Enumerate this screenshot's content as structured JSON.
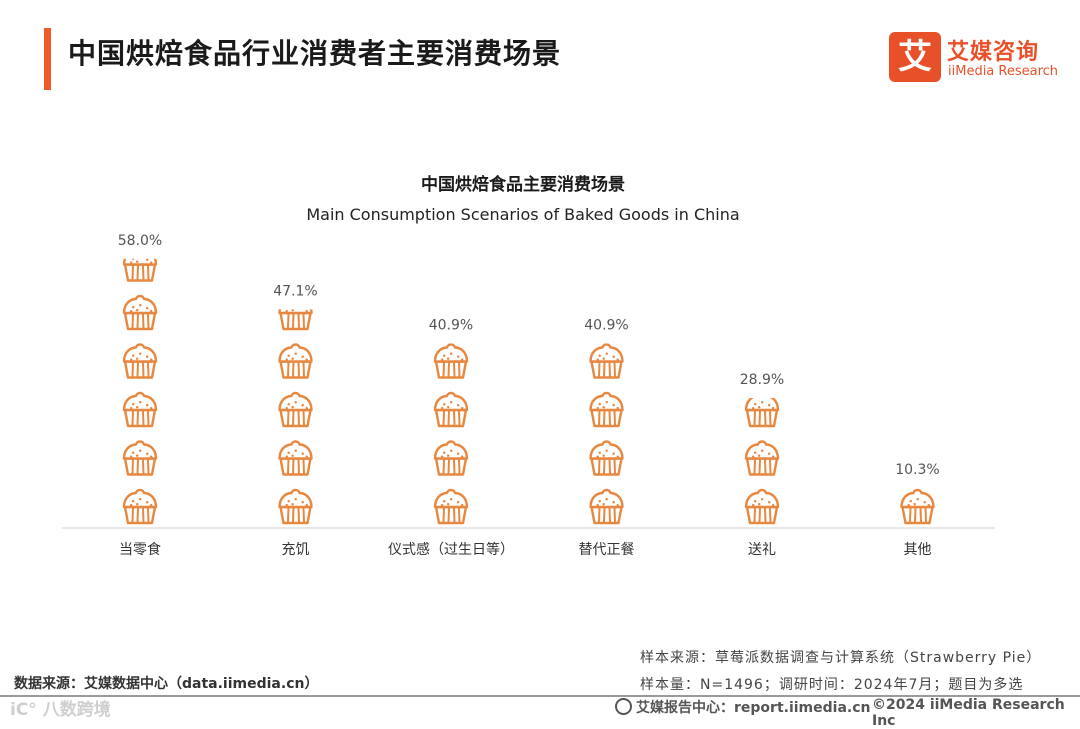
{
  "header": {
    "title": "中国烘焙食品行业消费者主要消费场景",
    "logo_mark": "艾",
    "logo_cn": "艾媒咨询",
    "logo_en": "iiMedia Research"
  },
  "colors": {
    "accent": "#f0592a",
    "icon": "#e8873f",
    "axis": "#d0d0d0"
  },
  "chart_data": {
    "type": "bar",
    "title": "中国烘焙食品主要消费场景",
    "subtitle": "Main Consumption Scenarios of Baked Goods in China",
    "categories": [
      "当零食",
      "充饥",
      "仪式感（过生日等）",
      "替代正餐",
      "送礼",
      "其他"
    ],
    "values": [
      58.0,
      47.1,
      40.9,
      40.9,
      28.9,
      10.3
    ],
    "value_labels": [
      "58.0%",
      "47.1%",
      "40.9%",
      "40.9%",
      "28.9%",
      "10.3%"
    ],
    "unit": "%",
    "icon": "cupcake-icon",
    "icon_value": 10.3,
    "xlabel": "",
    "ylabel": ""
  },
  "footer": {
    "data_source": "数据来源：艾媒数据中心（data.iimedia.cn）",
    "sample_source": "样本来源：草莓派数据调查与计算系统（Strawberry Pie）",
    "sample_info": "样本量：N=1496；调研时间：2024年7月；题目为多选",
    "report_center": "艾媒报告中心：report.iimedia.cn",
    "copyright": "©2024 iiMedia Research Inc",
    "watermark": "iC° 八数跨境"
  }
}
